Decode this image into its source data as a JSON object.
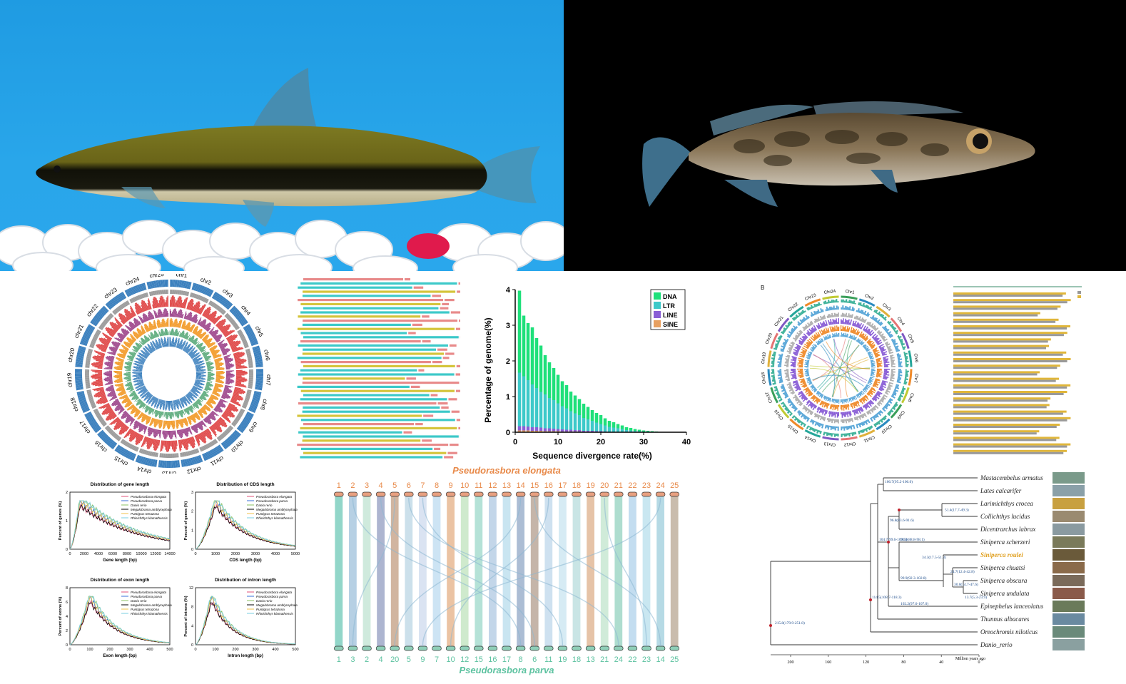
{
  "colors": {
    "dna": "#1ee07a",
    "ltr": "#3dc9c9",
    "line": "#8a5fd6",
    "sine": "#e8a060",
    "elongata": "#e88a4a",
    "parva": "#5cc2a0"
  },
  "circos_left": {
    "chromosomes": [
      "chr1",
      "chr2",
      "chr3",
      "chr4",
      "chr5",
      "chr6",
      "chr7",
      "chr8",
      "chr9",
      "chr10",
      "chr11",
      "chr12",
      "chr13",
      "chr14",
      "chr15",
      "chr16",
      "chr17",
      "chr18",
      "chr19",
      "chr20",
      "chr21",
      "chr22",
      "chr23",
      "chr24",
      "chr25"
    ]
  },
  "circos_right": {
    "panel_label": "B",
    "chromosomes": [
      "Chr1",
      "Chr2",
      "Chr3",
      "Chr4",
      "Chr5",
      "Chr6",
      "Chr7",
      "Chr8",
      "Chr9",
      "Chr10",
      "Chr11",
      "Chr12",
      "Chr13",
      "Chr14",
      "Chr15",
      "Chr16",
      "Chr17",
      "Chr18",
      "Chr19",
      "Chr20",
      "Chr21",
      "Chr22",
      "Chr23",
      "Chr24"
    ]
  },
  "chart_data": [
    {
      "type": "bar",
      "title": "",
      "xlabel": "Sequence divergence rate(%)",
      "ylabel": "Percentage of genome(%)",
      "xlim": [
        0,
        40
      ],
      "ylim": [
        0,
        4
      ],
      "xticks": [
        0,
        10,
        20,
        30,
        40
      ],
      "yticks": [
        0,
        1,
        2,
        3,
        4
      ],
      "legend_position": "top-right",
      "x": [
        1,
        2,
        3,
        4,
        5,
        6,
        7,
        8,
        9,
        10,
        11,
        12,
        13,
        14,
        15,
        16,
        17,
        18,
        19,
        20,
        21,
        22,
        23,
        24,
        25,
        26,
        27,
        28,
        29,
        30,
        31,
        32,
        33,
        34,
        35,
        36,
        37,
        38,
        39
      ],
      "series": [
        {
          "name": "DNA",
          "values": [
            2.3,
            1.7,
            1.6,
            1.6,
            1.4,
            1.3,
            1.1,
            1.0,
            0.9,
            0.8,
            0.7,
            0.65,
            0.55,
            0.5,
            0.45,
            0.4,
            0.35,
            0.3,
            0.27,
            0.25,
            0.2,
            0.17,
            0.15,
            0.12,
            0.1,
            0.08,
            0.07,
            0.05,
            0.04,
            0.03,
            0.02,
            0.02,
            0.01,
            0.01,
            0.01,
            0.0,
            0.0,
            0.0,
            0.0
          ]
        },
        {
          "name": "LTR",
          "values": [
            1.5,
            1.4,
            1.3,
            1.2,
            1.1,
            1.0,
            0.95,
            0.85,
            0.8,
            0.72,
            0.65,
            0.6,
            0.52,
            0.47,
            0.42,
            0.36,
            0.32,
            0.28,
            0.24,
            0.2,
            0.17,
            0.14,
            0.12,
            0.1,
            0.08,
            0.06,
            0.05,
            0.04,
            0.03,
            0.02,
            0.02,
            0.01,
            0.01,
            0.0,
            0.0,
            0.0,
            0.0,
            0.0,
            0.0
          ]
        },
        {
          "name": "LINE",
          "values": [
            0.12,
            0.12,
            0.11,
            0.1,
            0.1,
            0.09,
            0.08,
            0.08,
            0.07,
            0.06,
            0.06,
            0.05,
            0.05,
            0.04,
            0.04,
            0.03,
            0.03,
            0.03,
            0.02,
            0.02,
            0.02,
            0.01,
            0.01,
            0.01,
            0.01,
            0.0,
            0.0,
            0.0,
            0.0,
            0.0,
            0.0,
            0.0,
            0.0,
            0.0,
            0.0,
            0.0,
            0.0,
            0.0,
            0.0
          ]
        },
        {
          "name": "SINE",
          "values": [
            0.05,
            0.05,
            0.05,
            0.04,
            0.04,
            0.04,
            0.03,
            0.03,
            0.03,
            0.03,
            0.02,
            0.02,
            0.02,
            0.02,
            0.02,
            0.01,
            0.01,
            0.01,
            0.01,
            0.01,
            0.0,
            0.0,
            0.0,
            0.0,
            0.0,
            0.0,
            0.0,
            0.0,
            0.0,
            0.0,
            0.0,
            0.0,
            0.0,
            0.0,
            0.0,
            0.0,
            0.0,
            0.0,
            0.0
          ]
        }
      ]
    },
    {
      "type": "line",
      "title": "Distribution of gene length",
      "xlabel": "Gene length (bp)",
      "ylabel": "Percent of genes (%)",
      "xticks": [
        0,
        2000,
        4000,
        6000,
        8000,
        10000,
        12000,
        14000
      ],
      "yticks": [
        0,
        1,
        2
      ],
      "legend_position": "top-right"
    },
    {
      "type": "line",
      "title": "Distribution of CDS length",
      "xlabel": "CDS length (bp)",
      "ylabel": "Percent of genes (%)",
      "xticks": [
        0,
        1000,
        2000,
        3000,
        4000,
        5000
      ],
      "yticks": [
        0,
        1,
        2,
        3
      ],
      "legend_position": "top-right"
    },
    {
      "type": "line",
      "title": "Distribution of exon length",
      "xlabel": "Exon length (bp)",
      "ylabel": "Percent of exons (%)",
      "xticks": [
        0,
        100,
        200,
        300,
        400,
        500
      ],
      "yticks": [
        0,
        2,
        4,
        6,
        8
      ],
      "legend_position": "top-right"
    },
    {
      "type": "line",
      "title": "Distribution of intron length",
      "xlabel": "Intron length (bp)",
      "ylabel": "Percent of introns (%)",
      "xticks": [
        0,
        100,
        200,
        300,
        400,
        500
      ],
      "yticks": [
        0,
        4,
        8,
        12
      ],
      "legend_position": "top-right"
    }
  ],
  "length_legend": [
    "Pseudorasbora elongata",
    "Pseudorasbora parva",
    "Danio rerio",
    "Megalobrama amblycephala",
    "Puntigrus tetrazona",
    "Rhinichthys klamathensis"
  ],
  "synteny": {
    "top_species": "Pseudorasbora elongata",
    "bottom_species": "Pseudorasbora parva",
    "top_labels": [
      "1",
      "2",
      "3",
      "4",
      "5",
      "6",
      "7",
      "8",
      "9",
      "10",
      "11",
      "12",
      "13",
      "14",
      "15",
      "16",
      "17",
      "18",
      "19",
      "20",
      "21",
      "22",
      "23",
      "24",
      "25"
    ],
    "bottom_labels": [
      "1",
      "3",
      "2",
      "4",
      "20",
      "5",
      "9",
      "7",
      "10",
      "12",
      "15",
      "16",
      "17",
      "8",
      "6",
      "11",
      "19",
      "18",
      "13",
      "21",
      "24",
      "22",
      "23",
      "14",
      "25"
    ]
  },
  "tree": {
    "species": [
      "Mastacembelus armatus",
      "Lates calcarifer",
      "Larimichthys crocea",
      "Collichthys lucidus",
      "Dicentrarchus labrax",
      "Siniperca scherzeri",
      "Siniperca roulei",
      "Siniperca chuatsi",
      "Siniperca obscura",
      "Siniperca undulata",
      "Epinephelus lanceolatus",
      "Thunnus albacares",
      "Oreochromis niloticus",
      "Danio_rerio"
    ],
    "highlight": "Siniperca roulei",
    "node_labels": [
      "215.8(179.9-251.8)",
      "114.5(108.7-118.3)",
      "104.7(99.6-109.5)",
      "106.7(95.2-106.0)",
      "96.8(83.6-91.6)",
      "51.4(17.7-49.3)",
      "93.0(88.8-98.1)",
      "99.9(92.3-102.8)",
      "102.2(97.6-107.0)",
      "34.3(17.5-51.3)",
      "24.7(12.4-42.8)",
      "30.0(14.7-47.6)",
      "13.7(5.3-23.9)"
    ],
    "axis_ticks": [
      "200",
      "160",
      "120",
      "80",
      "40",
      "0"
    ],
    "axis_label": "Million years ago"
  }
}
